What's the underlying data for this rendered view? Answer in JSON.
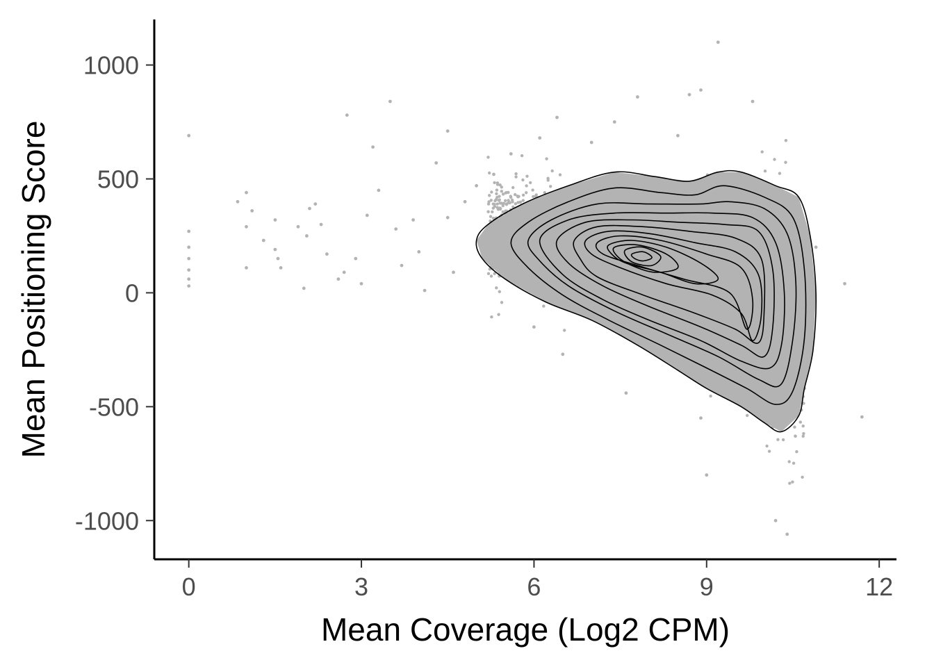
{
  "chart_data": {
    "type": "scatter",
    "title": "",
    "xlabel": "Mean Coverage (Log2 CPM)",
    "ylabel": "Mean Positioning Score",
    "xlim": [
      -0.6,
      12.3
    ],
    "ylim": [
      -1170,
      1200
    ],
    "x_ticks": [
      0,
      3,
      6,
      9,
      12
    ],
    "x_tick_labels": [
      "0",
      "3",
      "6",
      "9",
      "12"
    ],
    "y_ticks": [
      1000,
      500,
      0,
      -500,
      -1000
    ],
    "y_tick_labels": [
      "1000",
      "500",
      "0",
      "-500",
      "-1000"
    ],
    "grid": false,
    "legend": "none",
    "point_color": "#b3b3b3",
    "contour_color": "#000000",
    "contour_fill": "#b3b3b3",
    "sparse_points": [
      [
        0.0,
        690
      ],
      [
        0.0,
        270
      ],
      [
        0.0,
        200
      ],
      [
        0.0,
        150
      ],
      [
        0.0,
        100
      ],
      [
        0.0,
        60
      ],
      [
        0.0,
        30
      ],
      [
        0.85,
        400
      ],
      [
        1.0,
        440
      ],
      [
        1.0,
        290
      ],
      [
        1.0,
        110
      ],
      [
        1.1,
        360
      ],
      [
        1.3,
        230
      ],
      [
        1.5,
        320
      ],
      [
        1.5,
        190
      ],
      [
        1.55,
        150
      ],
      [
        1.6,
        110
      ],
      [
        1.9,
        290
      ],
      [
        2.0,
        20
      ],
      [
        2.05,
        250
      ],
      [
        2.1,
        370
      ],
      [
        2.2,
        390
      ],
      [
        2.3,
        300
      ],
      [
        2.4,
        170
      ],
      [
        2.6,
        60
      ],
      [
        2.7,
        90
      ],
      [
        2.75,
        780
      ],
      [
        2.9,
        150
      ],
      [
        3.0,
        40
      ],
      [
        3.1,
        340
      ],
      [
        3.2,
        640
      ],
      [
        3.3,
        450
      ],
      [
        3.5,
        840
      ],
      [
        3.6,
        280
      ],
      [
        3.7,
        120
      ],
      [
        3.9,
        320
      ],
      [
        4.0,
        180
      ],
      [
        4.1,
        10
      ],
      [
        4.3,
        570
      ],
      [
        4.5,
        710
      ],
      [
        4.5,
        330
      ],
      [
        4.6,
        90
      ],
      [
        4.8,
        400
      ],
      [
        5.0,
        470
      ],
      [
        5.3,
        520
      ],
      [
        5.4,
        270
      ],
      [
        5.6,
        610
      ],
      [
        5.9,
        80
      ],
      [
        6.1,
        680
      ],
      [
        6.4,
        770
      ],
      [
        7.0,
        660
      ],
      [
        7.4,
        750
      ],
      [
        7.8,
        860
      ],
      [
        8.5,
        690
      ],
      [
        8.7,
        870
      ],
      [
        8.9,
        890
      ],
      [
        9.2,
        1100
      ],
      [
        9.8,
        840
      ],
      [
        11.4,
        40
      ],
      [
        11.7,
        -545
      ],
      [
        10.8,
        -40
      ],
      [
        10.7,
        -420
      ],
      [
        10.2,
        -1000
      ],
      [
        10.4,
        -1060
      ],
      [
        9.0,
        -800
      ],
      [
        8.9,
        -550
      ],
      [
        7.6,
        -440
      ],
      [
        6.5,
        -270
      ],
      [
        6.0,
        -150
      ],
      [
        10.9,
        200
      ]
    ],
    "contour_levels": [
      [
        [
          5.0,
          230
        ],
        [
          5.2,
          300
        ],
        [
          5.8,
          390
        ],
        [
          6.6,
          470
        ],
        [
          7.4,
          530
        ],
        [
          8.1,
          510
        ],
        [
          8.7,
          490
        ],
        [
          9.2,
          530
        ],
        [
          9.6,
          530
        ],
        [
          10.2,
          470
        ],
        [
          10.6,
          420
        ],
        [
          10.8,
          250
        ],
        [
          10.9,
          0
        ],
        [
          10.85,
          -250
        ],
        [
          10.7,
          -420
        ],
        [
          10.6,
          -540
        ],
        [
          10.3,
          -610
        ],
        [
          10.0,
          -570
        ],
        [
          9.6,
          -500
        ],
        [
          9.0,
          -420
        ],
        [
          8.5,
          -340
        ],
        [
          7.8,
          -230
        ],
        [
          7.0,
          -120
        ],
        [
          6.2,
          -40
        ],
        [
          5.5,
          60
        ],
        [
          5.1,
          150
        ]
      ],
      [
        [
          5.6,
          220
        ],
        [
          5.9,
          310
        ],
        [
          6.6,
          400
        ],
        [
          7.4,
          460
        ],
        [
          8.2,
          440
        ],
        [
          8.8,
          430
        ],
        [
          9.3,
          470
        ],
        [
          10.0,
          420
        ],
        [
          10.5,
          330
        ],
        [
          10.7,
          100
        ],
        [
          10.7,
          -200
        ],
        [
          10.5,
          -430
        ],
        [
          10.2,
          -490
        ],
        [
          9.7,
          -420
        ],
        [
          9.0,
          -330
        ],
        [
          8.2,
          -230
        ],
        [
          7.3,
          -120
        ],
        [
          6.5,
          -10
        ],
        [
          5.9,
          110
        ]
      ],
      [
        [
          5.9,
          230
        ],
        [
          6.3,
          320
        ],
        [
          7.1,
          390
        ],
        [
          8.0,
          390
        ],
        [
          8.9,
          390
        ],
        [
          9.4,
          400
        ],
        [
          10.0,
          370
        ],
        [
          10.4,
          260
        ],
        [
          10.55,
          50
        ],
        [
          10.5,
          -200
        ],
        [
          10.3,
          -400
        ],
        [
          9.9,
          -380
        ],
        [
          9.2,
          -280
        ],
        [
          8.3,
          -180
        ],
        [
          7.4,
          -80
        ],
        [
          6.6,
          30
        ],
        [
          6.1,
          140
        ]
      ],
      [
        [
          6.1,
          230
        ],
        [
          6.6,
          320
        ],
        [
          7.4,
          350
        ],
        [
          8.3,
          350
        ],
        [
          9.1,
          350
        ],
        [
          9.8,
          330
        ],
        [
          10.2,
          220
        ],
        [
          10.35,
          0
        ],
        [
          10.3,
          -230
        ],
        [
          10.1,
          -330
        ],
        [
          9.6,
          -300
        ],
        [
          8.9,
          -210
        ],
        [
          8.0,
          -120
        ],
        [
          7.2,
          -30
        ],
        [
          6.5,
          80
        ]
      ],
      [
        [
          6.4,
          230
        ],
        [
          6.9,
          310
        ],
        [
          7.7,
          320
        ],
        [
          8.5,
          310
        ],
        [
          9.3,
          300
        ],
        [
          9.9,
          270
        ],
        [
          10.15,
          100
        ],
        [
          10.15,
          -150
        ],
        [
          10.0,
          -280
        ],
        [
          9.6,
          -230
        ],
        [
          8.9,
          -150
        ],
        [
          8.0,
          -60
        ],
        [
          7.2,
          30
        ],
        [
          6.6,
          130
        ]
      ],
      [
        [
          6.7,
          230
        ],
        [
          7.1,
          290
        ],
        [
          7.9,
          290
        ],
        [
          8.7,
          270
        ],
        [
          9.5,
          240
        ],
        [
          9.95,
          150
        ],
        [
          10.0,
          -80
        ],
        [
          9.9,
          -220
        ],
        [
          9.5,
          -160
        ],
        [
          8.8,
          -90
        ],
        [
          7.9,
          -10
        ],
        [
          7.1,
          70
        ],
        [
          6.8,
          150
        ]
      ],
      [
        [
          6.9,
          230
        ],
        [
          7.3,
          270
        ],
        [
          8.0,
          260
        ],
        [
          8.8,
          220
        ],
        [
          9.5,
          180
        ],
        [
          9.9,
          80
        ],
        [
          9.95,
          -100
        ],
        [
          9.8,
          -210
        ],
        [
          9.6,
          -90
        ],
        [
          9.1,
          -10
        ],
        [
          8.3,
          40
        ],
        [
          7.5,
          110
        ],
        [
          7.0,
          170
        ]
      ],
      [
        [
          7.1,
          220
        ],
        [
          7.5,
          250
        ],
        [
          8.2,
          230
        ],
        [
          9.0,
          170
        ],
        [
          9.6,
          110
        ],
        [
          9.8,
          -30
        ],
        [
          9.7,
          -160
        ],
        [
          9.4,
          0
        ],
        [
          8.6,
          60
        ],
        [
          7.8,
          120
        ],
        [
          7.2,
          170
        ]
      ],
      [
        [
          7.3,
          210
        ],
        [
          7.7,
          230
        ],
        [
          8.3,
          200
        ],
        [
          8.9,
          130
        ],
        [
          9.2,
          60
        ],
        [
          8.8,
          40
        ],
        [
          8.2,
          90
        ],
        [
          7.6,
          130
        ],
        [
          7.35,
          170
        ]
      ],
      [
        [
          7.4,
          200
        ],
        [
          7.8,
          210
        ],
        [
          8.3,
          170
        ],
        [
          8.5,
          110
        ],
        [
          8.1,
          90
        ],
        [
          7.7,
          120
        ],
        [
          7.45,
          160
        ]
      ],
      [
        [
          7.6,
          190
        ],
        [
          7.9,
          200
        ],
        [
          8.2,
          160
        ],
        [
          8.05,
          120
        ],
        [
          7.75,
          130
        ],
        [
          7.6,
          160
        ]
      ],
      [
        [
          7.7,
          170
        ],
        [
          7.9,
          180
        ],
        [
          8.05,
          155
        ],
        [
          7.9,
          140
        ],
        [
          7.75,
          150
        ]
      ]
    ]
  }
}
